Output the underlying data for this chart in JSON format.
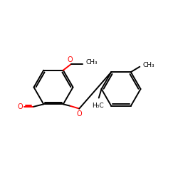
{
  "figsize": [
    2.5,
    2.5
  ],
  "dpi": 100,
  "background_color": "#ffffff",
  "bond_color": "#000000",
  "oxygen_color": "#ff0000",
  "text_color": "#000000",
  "lw": 1.4,
  "xlim": [
    0,
    10
  ],
  "ylim": [
    0,
    10
  ]
}
